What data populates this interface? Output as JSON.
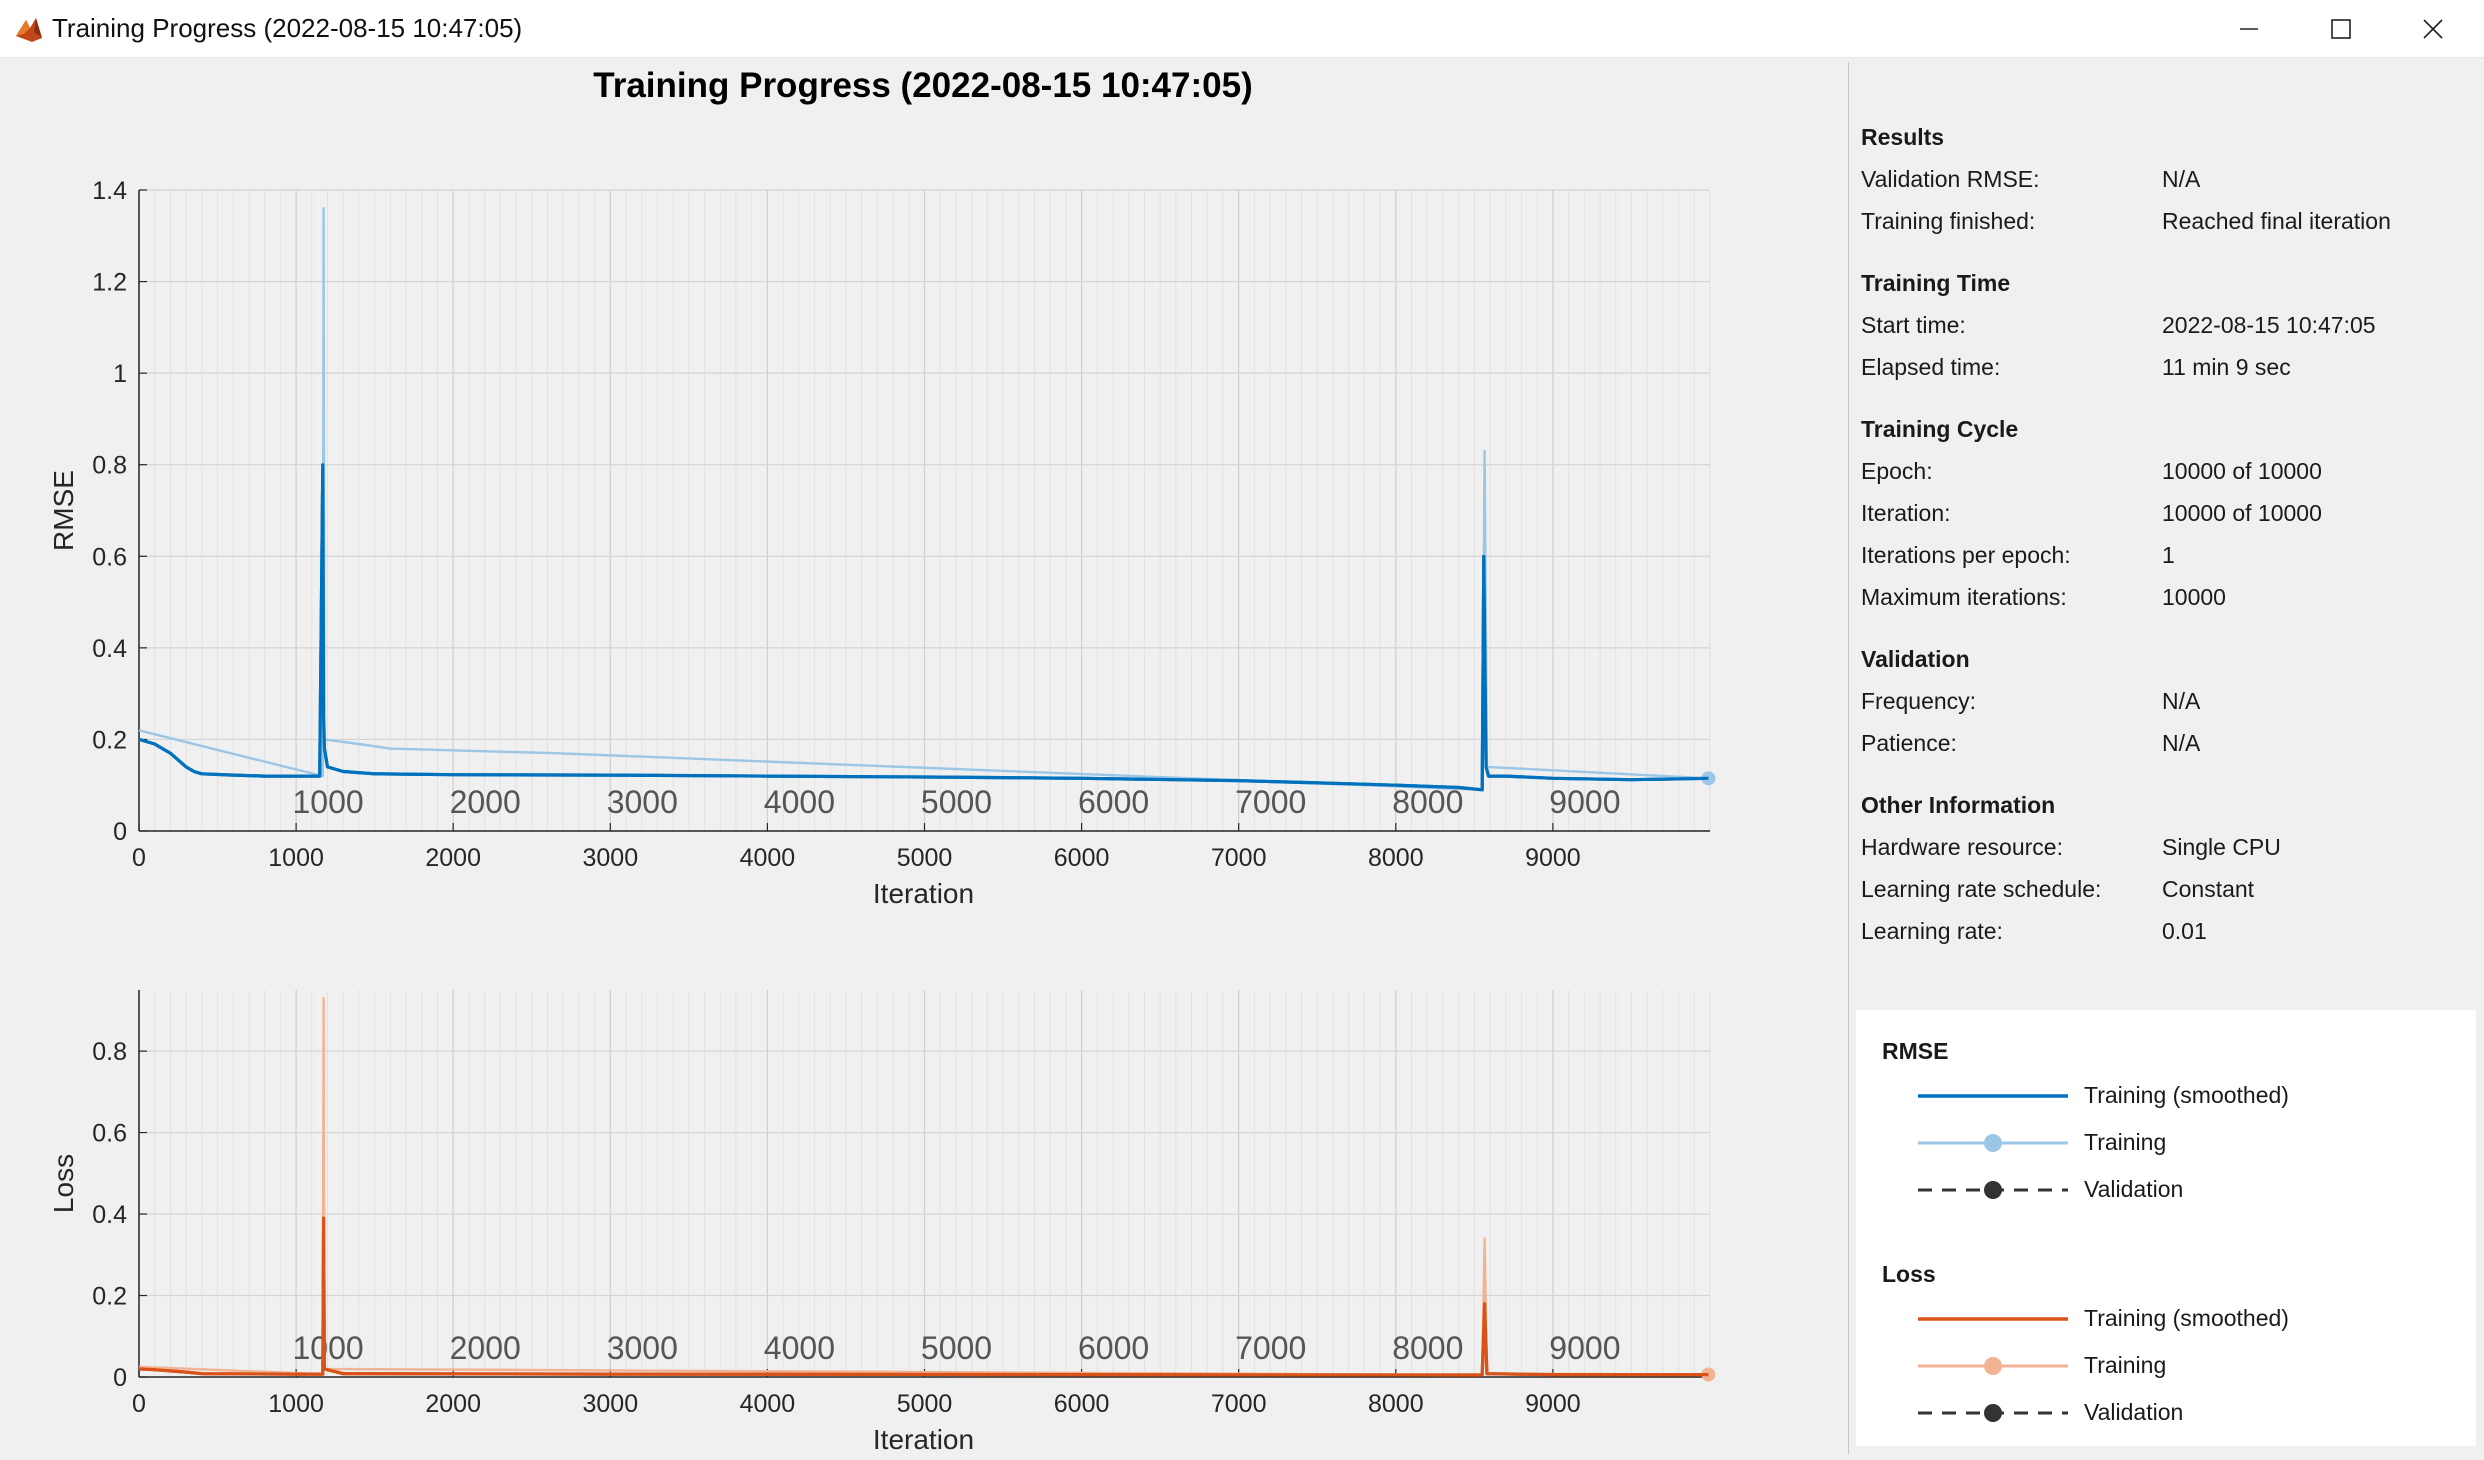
{
  "window": {
    "title": "Training Progress (2022-08-15 10:47:05)",
    "icon": "matlab-icon",
    "controls": [
      "minimize-icon",
      "maximize-icon",
      "close-icon"
    ]
  },
  "figure_title": "Training Progress (2022-08-15 10:47:05)",
  "colors": {
    "rmse_smoothed": "#0072bd",
    "rmse_training": "#9cc6e6",
    "loss_smoothed": "#d95319",
    "loss_training": "#f2b294",
    "validation": "#333333"
  },
  "chart_data": [
    {
      "type": "line",
      "title": "",
      "xlabel": "Iteration",
      "ylabel": "RMSE",
      "xlim": [
        0,
        10000
      ],
      "ylim": [
        0,
        1.4
      ],
      "xticks": [
        "0",
        "1000",
        "2000",
        "3000",
        "4000",
        "5000",
        "6000",
        "7000",
        "8000",
        "9000"
      ],
      "yticks": [
        "0",
        "0.2",
        "0.4",
        "0.6",
        "0.8",
        "1",
        "1.2",
        "1.4"
      ],
      "epoch_markers": [
        "1000",
        "2000",
        "3000",
        "4000",
        "5000",
        "6000",
        "7000",
        "8000",
        "9000"
      ],
      "grid": true,
      "series": [
        {
          "name": "Training (smoothed)",
          "x": [
            0,
            100,
            200,
            300,
            350,
            400,
            600,
            800,
            1000,
            1150,
            1170,
            1175,
            1180,
            1200,
            1300,
            1500,
            2000,
            3000,
            4000,
            5000,
            6000,
            7000,
            7500,
            8000,
            8400,
            8550,
            8560,
            8575,
            8590,
            8700,
            9000,
            9500,
            9990
          ],
          "y": [
            0.2,
            0.19,
            0.17,
            0.14,
            0.13,
            0.125,
            0.122,
            0.12,
            0.12,
            0.12,
            0.8,
            0.25,
            0.18,
            0.14,
            0.13,
            0.125,
            0.123,
            0.122,
            0.12,
            0.118,
            0.115,
            0.11,
            0.105,
            0.1,
            0.095,
            0.09,
            0.6,
            0.14,
            0.12,
            0.12,
            0.115,
            0.112,
            0.115
          ]
        },
        {
          "name": "Training",
          "x": [
            0,
            1170,
            1175,
            1180,
            1400,
            1600,
            2650,
            8550,
            8565,
            8580,
            9990
          ],
          "y": [
            0.22,
            0.12,
            1.36,
            0.2,
            0.19,
            0.18,
            0.17,
            0.09,
            0.83,
            0.14,
            0.115
          ]
        },
        {
          "name": "Validation",
          "x": [],
          "y": []
        }
      ]
    },
    {
      "type": "line",
      "title": "",
      "xlabel": "Iteration",
      "ylabel": "Loss",
      "xlim": [
        0,
        10000
      ],
      "ylim": [
        0,
        0.95
      ],
      "xticks": [
        "0",
        "1000",
        "2000",
        "3000",
        "4000",
        "5000",
        "6000",
        "7000",
        "8000",
        "9000"
      ],
      "yticks": [
        "0",
        "0.2",
        "0.4",
        "0.6",
        "0.8"
      ],
      "epoch_markers": [
        "1000",
        "2000",
        "3000",
        "4000",
        "5000",
        "6000",
        "7000",
        "8000",
        "9000"
      ],
      "grid": true,
      "series": [
        {
          "name": "Training (smoothed)",
          "x": [
            0,
            100,
            300,
            400,
            1000,
            1170,
            1175,
            1180,
            1300,
            3000,
            6000,
            8550,
            8565,
            8580,
            9000,
            9990
          ],
          "y": [
            0.02,
            0.018,
            0.012,
            0.008,
            0.007,
            0.007,
            0.39,
            0.02,
            0.008,
            0.007,
            0.006,
            0.005,
            0.18,
            0.008,
            0.006,
            0.006
          ]
        },
        {
          "name": "Training",
          "x": [
            0,
            1170,
            1175,
            1180,
            8550,
            8565,
            8580,
            9990
          ],
          "y": [
            0.025,
            0.007,
            0.93,
            0.02,
            0.005,
            0.34,
            0.008,
            0.006
          ]
        },
        {
          "name": "Validation",
          "x": [],
          "y": []
        }
      ]
    }
  ],
  "sidebar": {
    "sections": [
      {
        "heading": "Results",
        "rows": [
          {
            "label": "Validation RMSE:",
            "value": "N/A"
          },
          {
            "label": "Training finished:",
            "value": "Reached final iteration"
          }
        ]
      },
      {
        "heading": "Training Time",
        "rows": [
          {
            "label": "Start time:",
            "value": "2022-08-15 10:47:05"
          },
          {
            "label": "Elapsed time:",
            "value": "11 min 9 sec"
          }
        ]
      },
      {
        "heading": "Training Cycle",
        "rows": [
          {
            "label": "Epoch:",
            "value": "10000 of 10000"
          },
          {
            "label": "Iteration:",
            "value": "10000 of 10000"
          },
          {
            "label": "Iterations per epoch:",
            "value": "1"
          },
          {
            "label": "Maximum iterations:",
            "value": "10000"
          }
        ]
      },
      {
        "heading": "Validation",
        "rows": [
          {
            "label": "Frequency:",
            "value": "N/A"
          },
          {
            "label": "Patience:",
            "value": "N/A"
          }
        ]
      },
      {
        "heading": "Other Information",
        "rows": [
          {
            "label": "Hardware resource:",
            "value": "Single CPU"
          },
          {
            "label": "Learning rate schedule:",
            "value": "Constant"
          },
          {
            "label": "Learning rate:",
            "value": "0.01"
          }
        ]
      }
    ]
  },
  "legend": {
    "groups": [
      {
        "heading": "RMSE",
        "items": [
          {
            "label": "Training (smoothed)",
            "style": "solid"
          },
          {
            "label": "Training",
            "style": "light-dot"
          },
          {
            "label": "Validation",
            "style": "dashed-dot"
          }
        ]
      },
      {
        "heading": "Loss",
        "items": [
          {
            "label": "Training (smoothed)",
            "style": "solid"
          },
          {
            "label": "Training",
            "style": "light-dot"
          },
          {
            "label": "Validation",
            "style": "dashed-dot"
          }
        ]
      }
    ]
  }
}
